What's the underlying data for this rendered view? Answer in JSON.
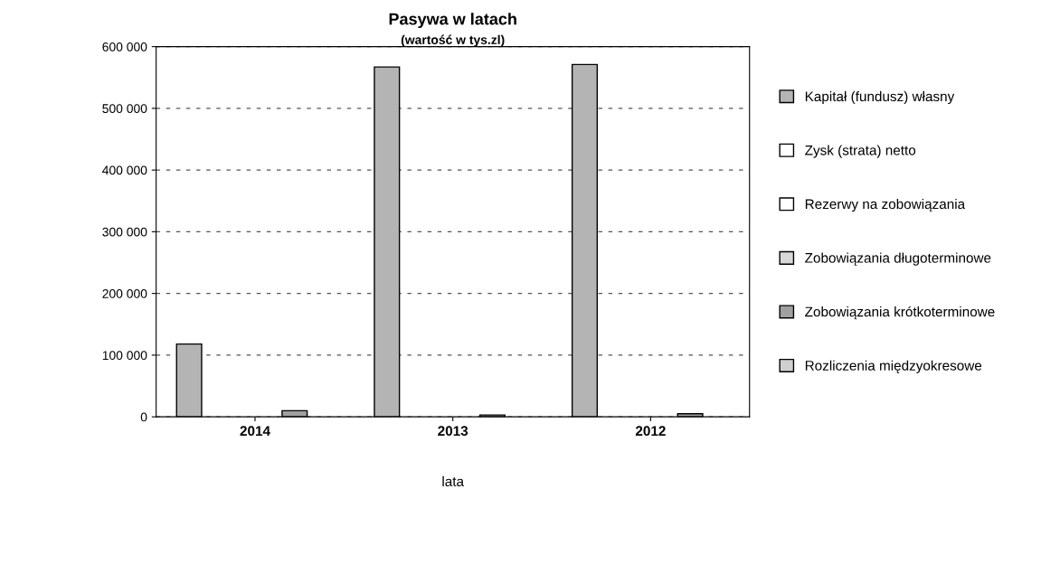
{
  "chart_data": {
    "type": "bar",
    "title": "Pasywa w latach",
    "subtitle": "(wartość w tys.zl)",
    "xlabel": "lata",
    "categories": [
      "2014",
      "2013",
      "2012"
    ],
    "series": [
      {
        "name": "Kapitał (fundusz) własny",
        "color": "#b4b4b4",
        "values": [
          118000,
          567000,
          571000
        ]
      },
      {
        "name": "Zysk (strata) netto",
        "color": "#ffffff",
        "values": [
          null,
          null,
          null
        ]
      },
      {
        "name": "Rezerwy na zobowiązania",
        "color": "#ffffff",
        "values": [
          null,
          null,
          null
        ]
      },
      {
        "name": "Zobowiązania długoterminowe",
        "color": "#d8d8d8",
        "values": [
          null,
          null,
          null
        ]
      },
      {
        "name": "Zobowiązania krótkoterminowe",
        "color": "#a0a0a0",
        "values": [
          10000,
          3000,
          5000
        ]
      },
      {
        "name": "Rozliczenia międzyokresowe",
        "color": "#d0d0d0",
        "values": [
          null,
          null,
          null
        ]
      }
    ],
    "ylim": [
      0,
      600000
    ],
    "yticks": [
      0,
      {
        "value": 100000,
        "label": "100 000"
      },
      {
        "value": 200000,
        "label": "200 000"
      },
      {
        "value": 300000,
        "label": "300 000"
      },
      {
        "value": 400000,
        "label": "400 000"
      },
      {
        "value": 500000,
        "label": "500 000"
      },
      {
        "value": 600000,
        "label": "600 000"
      }
    ],
    "grid": "y",
    "legend": "right"
  }
}
